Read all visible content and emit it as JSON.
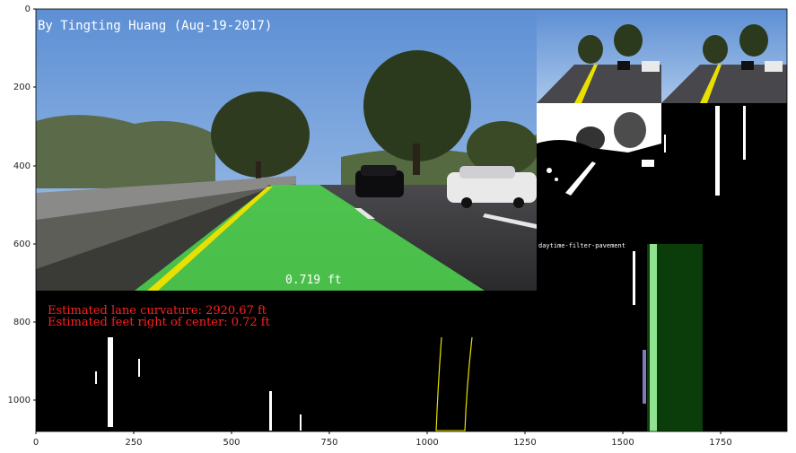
{
  "figure": {
    "image_width": 1920,
    "image_height": 1080,
    "overlay": {
      "credit": "By Tingting Huang (Aug-19-2017)",
      "center_offset_label": "0.719 ft",
      "curvature_line": "Estimated lane curvature: 2920.67 ft",
      "offset_line": "Estimated feet right of center: 0.72 ft",
      "panel_caption": "daytime-filter-pavement"
    },
    "colors": {
      "sky": "#6f9fd9",
      "lane_fill": "#4fd84f",
      "lane_line_yellow": "#e8e000",
      "text_red": "#ff2020",
      "window_green": "#0b3d0b"
    },
    "x_ticks": [
      "0",
      "250",
      "500",
      "750",
      "1000",
      "1250",
      "1500",
      "1750"
    ],
    "y_ticks": [
      "0",
      "200",
      "400",
      "600",
      "800",
      "1000"
    ]
  }
}
